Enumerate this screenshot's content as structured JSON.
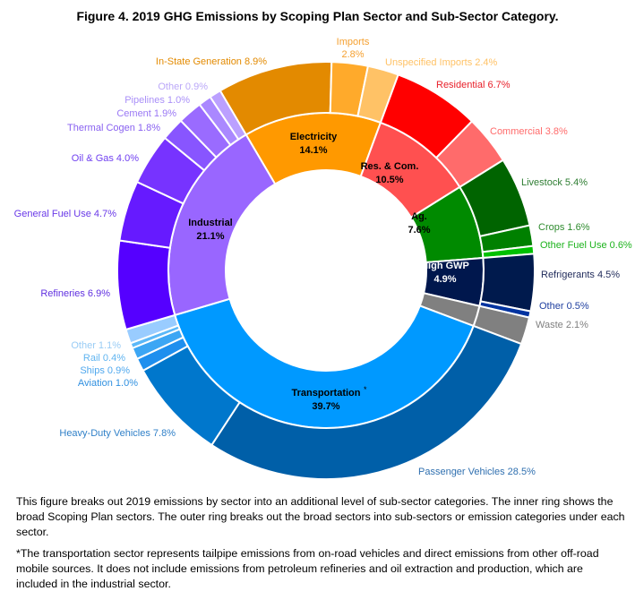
{
  "chart_data": {
    "type": "pie",
    "subtype": "nested-donut",
    "title": "Figure 4. 2019 GHG Emissions by Scoping Plan Sector and Sub-Sector Category.",
    "sectors": [
      {
        "name": "Electricity",
        "value": 14.1,
        "label": "14.1%",
        "color": "#FF9900",
        "text_color": "#000000",
        "subs": [
          {
            "name": "In-State Generation",
            "value": 8.9,
            "label": "In-State Generation 8.9%",
            "color": "#E38A00",
            "text_color": "#E38A00"
          },
          {
            "name": "Imports",
            "value": 2.8,
            "label": "Imports",
            "label2": "2.8%",
            "color": "#FFAA2B",
            "text_color": "#F5A030"
          },
          {
            "name": "Unspecified Imports",
            "value": 2.4,
            "label": "Unspecified Imports 2.4%",
            "color": "#FFC266",
            "text_color": "#FFC266"
          }
        ]
      },
      {
        "name": "Res. & Com.",
        "value": 10.5,
        "label": "10.5%",
        "color": "#FF5050",
        "text_color": "#000000",
        "subs": [
          {
            "name": "Residential",
            "value": 6.7,
            "label": "Residential 6.7%",
            "color": "#FF0000",
            "text_color": "#E8202A"
          },
          {
            "name": "Commercial",
            "value": 3.8,
            "label": "Commercial 3.8%",
            "color": "#FF6B6B",
            "text_color": "#FF6B6B"
          }
        ]
      },
      {
        "name": "Ag.",
        "value": 7.6,
        "label": "7.6%",
        "color": "#008A00",
        "text_color": "#000000",
        "subs": [
          {
            "name": "Livestock",
            "value": 5.4,
            "label": "Livestock 5.4%",
            "color": "#006400",
            "text_color": "#2E7D32"
          },
          {
            "name": "Crops",
            "value": 1.6,
            "label": "Crops 1.6%",
            "color": "#008000",
            "text_color": "#2E8B2E"
          },
          {
            "name": "Other Fuel Use",
            "value": 0.6,
            "label": "Other Fuel Use 0.6%",
            "color": "#00C000",
            "text_color": "#1DB31D"
          }
        ]
      },
      {
        "name": "High GWP",
        "value": 4.9,
        "label": "4.9%",
        "color": "#00174D",
        "text_color": "#FFFFFF",
        "subs": [
          {
            "name": "Refrigerants",
            "value": 4.5,
            "label": "Refrigerants 4.5%",
            "color": "#001A4D",
            "text_color": "#1F2A5A"
          },
          {
            "name": "Other",
            "value": 0.5,
            "label": "Other 0.5%",
            "color": "#0033A0",
            "text_color": "#2040A0"
          }
        ]
      },
      {
        "name": "Waste",
        "value": 2.1,
        "label": "",
        "color": "#808080",
        "text_color": "#000000",
        "subs": [
          {
            "name": "Waste",
            "value": 2.1,
            "label": "Waste 2.1%",
            "color": "#808080",
            "text_color": "#808080"
          }
        ]
      },
      {
        "name": "Transportation*",
        "value": 39.7,
        "label": "39.7%",
        "color": "#0099FF",
        "text_color": "#000000",
        "subs": [
          {
            "name": "Passenger Vehicles",
            "value": 28.5,
            "label": "Passenger Vehicles 28.5%",
            "color": "#005FA8",
            "text_color": "#3070B0"
          },
          {
            "name": "Heavy-Duty Vehicles",
            "value": 7.8,
            "label": "Heavy-Duty Vehicles 7.8%",
            "color": "#0077CC",
            "text_color": "#3080C8"
          },
          {
            "name": "Aviation",
            "value": 1.0,
            "label": "Aviation 1.0%",
            "color": "#1E8FEE",
            "text_color": "#3090E0"
          },
          {
            "name": "Ships",
            "value": 0.9,
            "label": "Ships 0.9%",
            "color": "#3CA6F4",
            "text_color": "#50A8EE"
          },
          {
            "name": "Rail",
            "value": 0.4,
            "label": "Rail 0.4%",
            "color": "#5BB8F8",
            "text_color": "#60B4F0"
          },
          {
            "name": "Other",
            "value": 1.1,
            "label": "Other 1.1%",
            "color": "#99CCFF",
            "text_color": "#99CCF5"
          }
        ]
      },
      {
        "name": "Industrial",
        "value": 21.1,
        "label": "21.1%",
        "color": "#9966FF",
        "text_color": "#000000",
        "subs": [
          {
            "name": "Refineries",
            "value": 6.9,
            "label": "Refineries 6.9%",
            "color": "#5500FF",
            "text_color": "#6030E0"
          },
          {
            "name": "General Fuel Use",
            "value": 4.7,
            "label": "General Fuel Use 4.7%",
            "color": "#661AFF",
            "text_color": "#6A3AE8"
          },
          {
            "name": "Oil & Gas",
            "value": 4.0,
            "label": "Oil & Gas 4.0%",
            "color": "#7733FF",
            "text_color": "#7040F0"
          },
          {
            "name": "Thermal Cogen",
            "value": 1.8,
            "label": "Thermal Cogen 1.8%",
            "color": "#8855FF",
            "text_color": "#8860F0"
          },
          {
            "name": "Cement",
            "value": 1.9,
            "label": "Cement 1.9%",
            "color": "#9A6BFF",
            "text_color": "#9A78F5"
          },
          {
            "name": "Pipelines",
            "value": 1.0,
            "label": "Pipelines 1.0%",
            "color": "#AA88FF",
            "text_color": "#AA90F8"
          },
          {
            "name": "Other",
            "value": 0.9,
            "label": "Other 0.9%",
            "color": "#BBA0FF",
            "text_color": "#BBA8F8"
          }
        ]
      }
    ]
  },
  "captions": {
    "description": "This figure breaks out 2019 emissions by sector into an additional level of sub-sector categories. The inner ring shows the broad Scoping Plan sectors. The outer ring breaks out the broad sectors into sub-sectors or emission categories under each sector.",
    "footnote": "*The transportation sector represents tailpipe emissions from on-road vehicles and direct emissions from other off-road mobile sources. It does not include emissions from petroleum refineries and oil extraction and production, which are included in the industrial sector."
  }
}
